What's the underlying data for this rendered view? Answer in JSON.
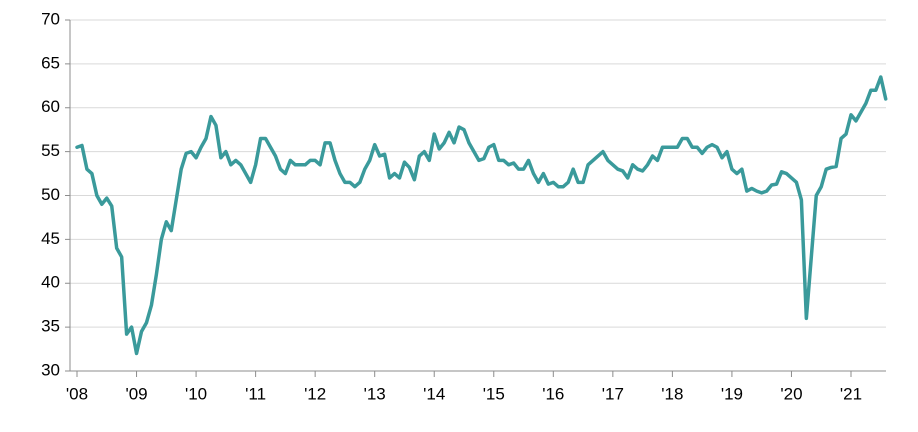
{
  "chart_data": {
    "type": "line",
    "categories": [
      "'08",
      null,
      null,
      null,
      null,
      null,
      null,
      null,
      null,
      null,
      null,
      null,
      "'09",
      null,
      null,
      null,
      null,
      null,
      null,
      null,
      null,
      null,
      null,
      null,
      "'10",
      null,
      null,
      null,
      null,
      null,
      null,
      null,
      null,
      null,
      null,
      null,
      "'11",
      null,
      null,
      null,
      null,
      null,
      null,
      null,
      null,
      null,
      null,
      null,
      "'12",
      null,
      null,
      null,
      null,
      null,
      null,
      null,
      null,
      null,
      null,
      null,
      "'13",
      null,
      null,
      null,
      null,
      null,
      null,
      null,
      null,
      null,
      null,
      null,
      "'14",
      null,
      null,
      null,
      null,
      null,
      null,
      null,
      null,
      null,
      null,
      null,
      "'15",
      null,
      null,
      null,
      null,
      null,
      null,
      null,
      null,
      null,
      null,
      null,
      "'16",
      null,
      null,
      null,
      null,
      null,
      null,
      null,
      null,
      null,
      null,
      null,
      "'17",
      null,
      null,
      null,
      null,
      null,
      null,
      null,
      null,
      null,
      null,
      null,
      "'18",
      null,
      null,
      null,
      null,
      null,
      null,
      null,
      null,
      null,
      null,
      null,
      "'19",
      null,
      null,
      null,
      null,
      null,
      null,
      null,
      null,
      null,
      null,
      null,
      "'20",
      null,
      null,
      null,
      null,
      null,
      null,
      null,
      null,
      null,
      null,
      null,
      "'21",
      null,
      null,
      null,
      null,
      null,
      null,
      null
    ],
    "values": [
      55.5,
      55.7,
      53,
      52.5,
      50,
      49,
      49.7,
      48.8,
      44,
      43,
      34.2,
      35,
      32,
      34.5,
      35.5,
      37.5,
      41,
      45,
      47,
      46,
      49.5,
      53,
      54.8,
      55,
      54.3,
      55.5,
      56.5,
      59,
      58,
      54.3,
      55,
      53.5,
      54,
      53.5,
      52.5,
      51.5,
      53.5,
      56.5,
      56.5,
      55.5,
      54.5,
      53,
      52.5,
      54,
      53.5,
      53.5,
      53.5,
      54,
      54,
      53.5,
      56,
      56,
      54,
      52.5,
      51.5,
      51.5,
      51,
      51.5,
      53,
      54,
      55.8,
      54.5,
      54.7,
      52,
      52.5,
      52,
      53.8,
      53.2,
      51.8,
      54.5,
      55,
      54,
      57,
      55.3,
      56,
      57.2,
      56,
      57.8,
      57.5,
      56,
      55,
      54,
      54.2,
      55.5,
      55.8,
      54,
      54,
      53.5,
      53.7,
      53,
      53,
      54,
      52.5,
      51.5,
      52.5,
      51.3,
      51.5,
      51,
      51,
      51.5,
      53,
      51.5,
      51.5,
      53.5,
      54,
      54.5,
      55,
      54,
      53.5,
      53,
      52.8,
      52,
      53.5,
      53,
      52.8,
      53.5,
      54.5,
      54,
      55.5,
      55.5,
      55.5,
      55.5,
      56.5,
      56.5,
      55.5,
      55.5,
      54.8,
      55.5,
      55.8,
      55.5,
      54.3,
      55,
      53,
      52.5,
      53,
      50.5,
      50.8,
      50.5,
      50.3,
      50.5,
      51.2,
      51.3,
      52.7,
      52.5,
      52,
      51.5,
      49.5,
      36,
      43,
      50,
      51,
      53,
      53.2,
      53.3,
      56.5,
      57,
      59.2,
      58.5,
      59.5,
      60.5,
      62,
      62,
      63.5,
      61
    ],
    "color": "#3a9a9b",
    "ylim": [
      30,
      70
    ],
    "yticks": [
      30,
      35,
      40,
      45,
      50,
      55,
      60,
      65,
      70
    ],
    "grid": true
  }
}
